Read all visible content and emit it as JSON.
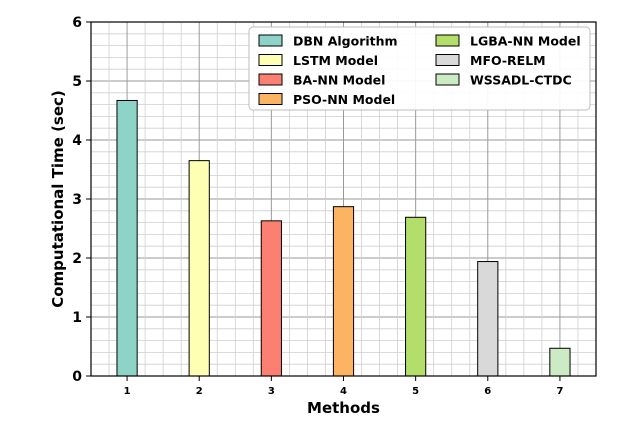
{
  "chart_data": {
    "type": "bar",
    "title": "",
    "xlabel": "Methods",
    "ylabel": "Computational Time (sec)",
    "ylim": [
      0,
      6
    ],
    "yticks": [
      "0",
      "1",
      "2",
      "3",
      "4",
      "5",
      "6"
    ],
    "categories": [
      "1",
      "2",
      "3",
      "4",
      "5",
      "6",
      "7"
    ],
    "grid": true,
    "legend_position": "top-right",
    "series": [
      {
        "name": "DBN Algorithm",
        "category": "1",
        "value": 4.67,
        "color": "#8dd3c7"
      },
      {
        "name": "LSTM Model",
        "category": "2",
        "value": 3.65,
        "color": "#ffffb3"
      },
      {
        "name": "BA-NN Model",
        "category": "3",
        "value": 2.63,
        "color": "#fb8072"
      },
      {
        "name": "PSO-NN Model",
        "category": "4",
        "value": 2.87,
        "color": "#fdb462"
      },
      {
        "name": "LGBA-NN Model",
        "category": "5",
        "value": 2.69,
        "color": "#b3de69"
      },
      {
        "name": "MFO-RELM",
        "category": "6",
        "value": 1.94,
        "color": "#d9d9d9"
      },
      {
        "name": "WSSADL-CTDC",
        "category": "7",
        "value": 0.47,
        "color": "#ccebc5"
      }
    ]
  }
}
